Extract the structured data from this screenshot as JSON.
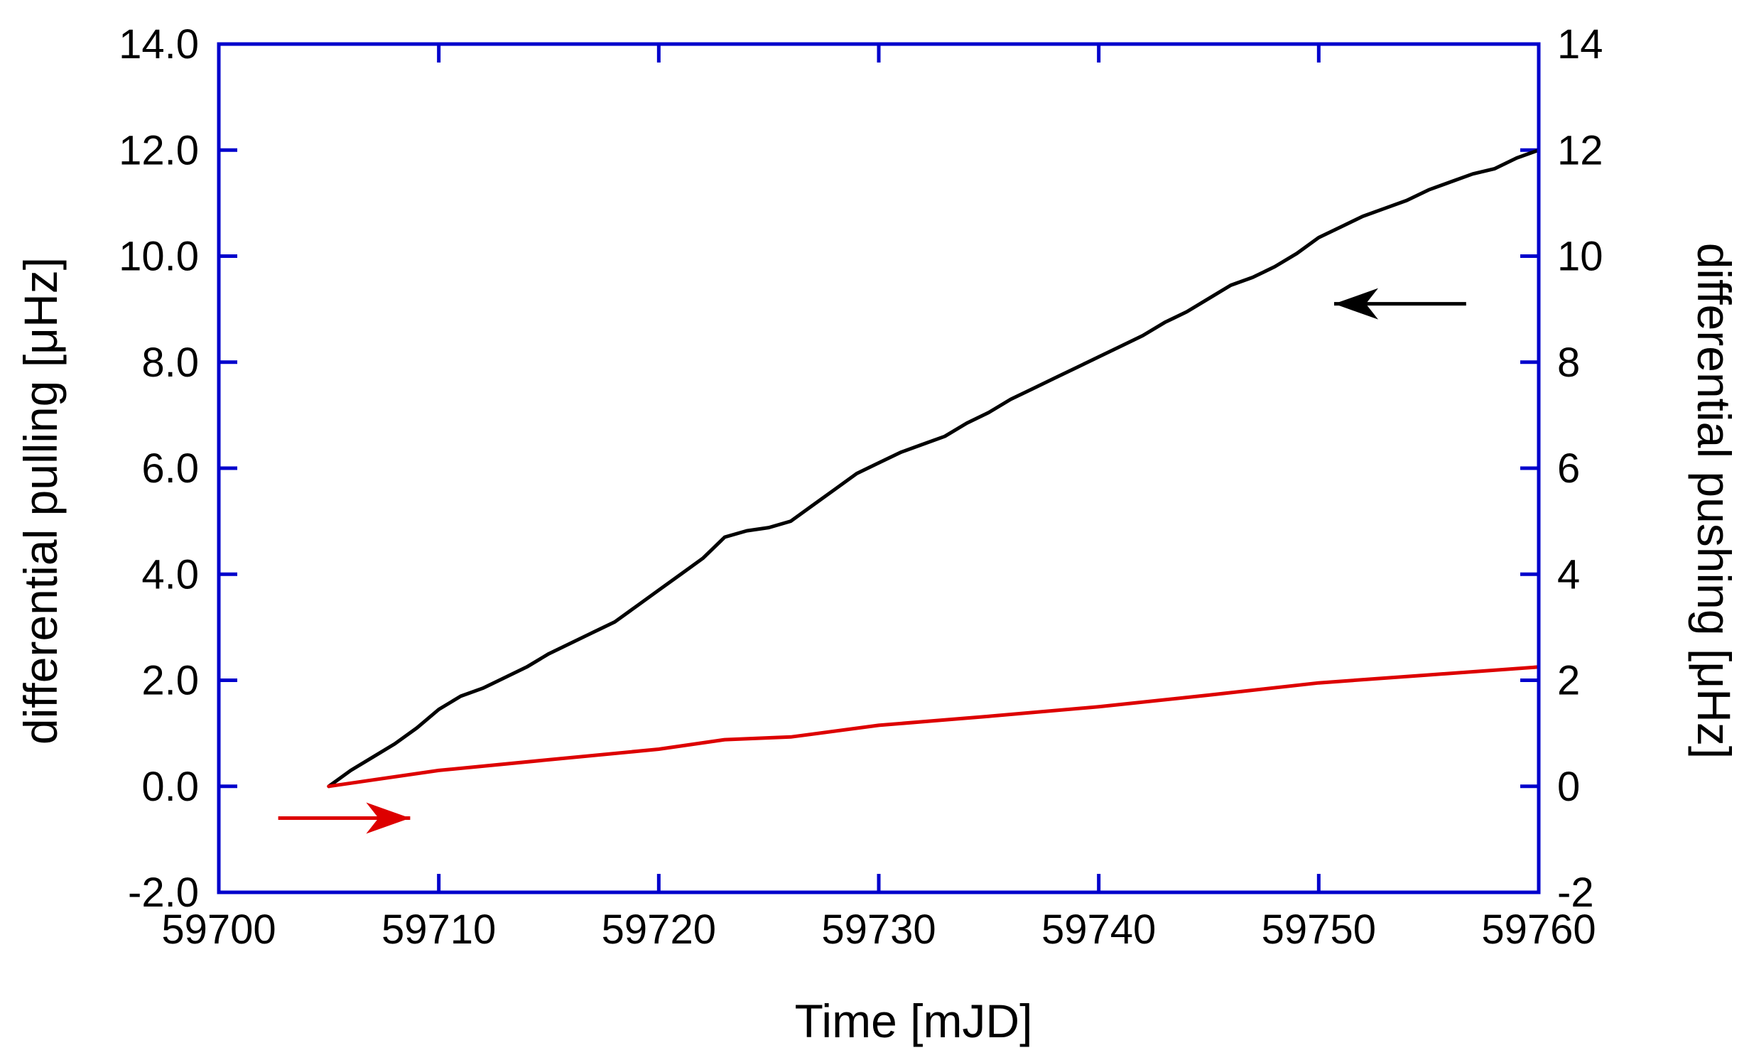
{
  "chart_data": {
    "type": "line",
    "xlabel": "Time [mJD]",
    "ylabel_left": "differential pulling [μHz]",
    "ylabel_right": "differential pushing [μHz]",
    "xlim": [
      59700,
      59760
    ],
    "ylim_left": [
      -2.0,
      14.0
    ],
    "ylim_right": [
      -2,
      14
    ],
    "x_ticks": [
      "59700",
      "59710",
      "59720",
      "59730",
      "59740",
      "59750",
      "59760"
    ],
    "y_ticks_left": [
      "-2.0",
      "0.0",
      "2.0",
      "4.0",
      "6.0",
      "8.0",
      "10.0",
      "12.0",
      "14.0"
    ],
    "y_ticks_right": [
      "-2",
      "0",
      "2",
      "4",
      "6",
      "8",
      "10",
      "12",
      "14"
    ],
    "grid": false,
    "colors": {
      "frame": "#0000cc",
      "pulling": "#000000",
      "pushing": "#dd0000"
    },
    "series": [
      {
        "axis": "left",
        "color": "#000000",
        "points": [
          [
            59705,
            0.0
          ],
          [
            59706,
            0.3
          ],
          [
            59707,
            0.55
          ],
          [
            59708,
            0.8
          ],
          [
            59709,
            1.1
          ],
          [
            59710,
            1.45
          ],
          [
            59711,
            1.7
          ],
          [
            59712,
            1.85
          ],
          [
            59713,
            2.05
          ],
          [
            59714,
            2.25
          ],
          [
            59715,
            2.5
          ],
          [
            59716,
            2.7
          ],
          [
            59717,
            2.9
          ],
          [
            59718,
            3.1
          ],
          [
            59719,
            3.4
          ],
          [
            59720,
            3.7
          ],
          [
            59721,
            4.0
          ],
          [
            59722,
            4.3
          ],
          [
            59723,
            4.7
          ],
          [
            59724,
            4.82
          ],
          [
            59725,
            4.88
          ],
          [
            59726,
            5.0
          ],
          [
            59727,
            5.3
          ],
          [
            59728,
            5.6
          ],
          [
            59729,
            5.9
          ],
          [
            59730,
            6.1
          ],
          [
            59731,
            6.3
          ],
          [
            59732,
            6.45
          ],
          [
            59733,
            6.6
          ],
          [
            59734,
            6.85
          ],
          [
            59735,
            7.05
          ],
          [
            59736,
            7.3
          ],
          [
            59737,
            7.5
          ],
          [
            59738,
            7.7
          ],
          [
            59739,
            7.9
          ],
          [
            59740,
            8.1
          ],
          [
            59741,
            8.3
          ],
          [
            59742,
            8.5
          ],
          [
            59743,
            8.75
          ],
          [
            59744,
            8.95
          ],
          [
            59745,
            9.2
          ],
          [
            59746,
            9.45
          ],
          [
            59747,
            9.6
          ],
          [
            59748,
            9.8
          ],
          [
            59749,
            10.05
          ],
          [
            59750,
            10.35
          ],
          [
            59751,
            10.55
          ],
          [
            59752,
            10.75
          ],
          [
            59753,
            10.9
          ],
          [
            59754,
            11.05
          ],
          [
            59755,
            11.25
          ],
          [
            59756,
            11.4
          ],
          [
            59757,
            11.55
          ],
          [
            59758,
            11.65
          ],
          [
            59759,
            11.85
          ],
          [
            59760,
            12.0
          ]
        ]
      },
      {
        "axis": "right",
        "color": "#dd0000",
        "points": [
          [
            59705,
            0.0
          ],
          [
            59710,
            0.3
          ],
          [
            59715,
            0.5
          ],
          [
            59720,
            0.7
          ],
          [
            59723,
            0.88
          ],
          [
            59726,
            0.93
          ],
          [
            59730,
            1.15
          ],
          [
            59735,
            1.32
          ],
          [
            59740,
            1.5
          ],
          [
            59745,
            1.72
          ],
          [
            59750,
            1.95
          ],
          [
            59755,
            2.1
          ],
          [
            59760,
            2.25
          ]
        ]
      }
    ],
    "annotations": [
      {
        "type": "arrow",
        "color": "#000000",
        "from": [
          59756.7,
          9.1
        ],
        "to": [
          59750.7,
          9.1
        ],
        "axis": "left"
      },
      {
        "type": "arrow",
        "color": "#dd0000",
        "from": [
          59702.7,
          -0.6
        ],
        "to": [
          59708.7,
          -0.6
        ],
        "axis": "left"
      }
    ]
  }
}
